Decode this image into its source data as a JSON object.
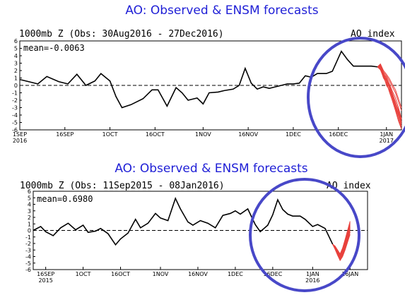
{
  "colors": {
    "title": "#1f1fd6",
    "observed": "#000000",
    "forecast": "#e8413c",
    "circle": "#4848c8"
  },
  "chart_data": [
    {
      "type": "line",
      "title": "AO: Observed & ENSM forecasts",
      "subtitle": "1000mb Z (Obs: 30Aug2016 - 27Dec2016)",
      "index_label": "AO index",
      "mean_label": "mean=-0.0063",
      "ylim": [
        -6,
        6
      ],
      "y_ticks": [
        "6",
        "5",
        "4",
        "3",
        "2",
        "1",
        "0",
        "-1",
        "-2",
        "-3",
        "-4",
        "-5",
        "-6"
      ],
      "x_ticks": [
        {
          "label": "1SEP",
          "sub": "2016",
          "x": 0
        },
        {
          "label": "16SEP",
          "x": 15
        },
        {
          "label": "1OCT",
          "x": 30
        },
        {
          "label": "16OCT",
          "x": 45
        },
        {
          "label": "1NOV",
          "x": 61
        },
        {
          "label": "16NOV",
          "x": 76
        },
        {
          "label": "1DEC",
          "x": 91
        },
        {
          "label": "16DEC",
          "x": 106
        },
        {
          "label": "1JAN",
          "sub": "2017",
          "x": 122
        }
      ],
      "x_range": [
        0,
        127
      ],
      "grid": false,
      "observed": {
        "x": [
          0,
          3,
          6,
          9,
          13,
          16,
          19,
          22,
          25,
          27,
          30,
          32,
          34,
          37,
          41,
          44,
          46,
          49,
          52,
          54,
          56,
          59,
          61,
          63,
          66,
          68,
          71,
          73,
          75,
          77,
          79,
          81,
          83,
          85,
          87,
          89,
          91,
          93,
          95,
          97,
          99,
          102,
          104,
          107,
          109,
          111,
          113,
          115,
          117,
          119
        ],
        "y": [
          0.8,
          0.5,
          0.2,
          1.2,
          0.5,
          0.2,
          1.5,
          0.0,
          0.6,
          1.6,
          0.6,
          -1.5,
          -3.0,
          -2.6,
          -1.8,
          -0.6,
          -0.6,
          -2.8,
          -0.3,
          -1.0,
          -2.0,
          -1.7,
          -2.5,
          -1.0,
          -0.9,
          -0.7,
          -0.5,
          0.0,
          2.3,
          0.3,
          -0.5,
          -0.2,
          -0.4,
          -0.2,
          0.0,
          0.2,
          0.2,
          0.3,
          1.3,
          1.1,
          1.6,
          1.6,
          1.9,
          4.6,
          3.5,
          2.6,
          2.6,
          2.6,
          2.6,
          2.5
        ]
      },
      "forecast": {
        "x_start": 119,
        "members": [
          [
            2.5,
            2.7,
            1.6,
            1.1,
            0.2,
            -0.8,
            -1.7,
            -3.0,
            -4.5
          ],
          [
            2.5,
            2.4,
            1.2,
            0.6,
            -0.4,
            -1.4,
            -2.6,
            -3.8,
            -5.2
          ],
          [
            2.5,
            2.2,
            1.5,
            0.0,
            -0.6,
            -1.8,
            -3.1,
            -4.5,
            -5.8
          ],
          [
            2.5,
            2.8,
            1.8,
            1.3,
            0.6,
            -0.2,
            -1.0,
            -2.2,
            -3.4
          ],
          [
            2.5,
            2.3,
            1.0,
            0.4,
            -0.9,
            -2.1,
            -3.4,
            -4.8,
            -5.9
          ],
          [
            2.5,
            2.6,
            1.7,
            0.8,
            0.0,
            -1.1,
            -2.2,
            -3.5,
            -4.9
          ],
          [
            2.5,
            2.5,
            1.4,
            0.9,
            -0.2,
            -1.5,
            -2.9,
            -4.1,
            -5.5
          ],
          [
            2.5,
            2.9,
            2.0,
            1.5,
            0.9,
            0.1,
            -0.6,
            -1.8,
            -3.0
          ],
          [
            2.5,
            2.1,
            1.1,
            0.2,
            -0.7,
            -1.6,
            -2.7,
            -3.9,
            -5.0
          ],
          [
            2.5,
            2.6,
            1.3,
            0.7,
            -0.3,
            -1.2,
            -2.3,
            -3.3,
            -4.6
          ]
        ]
      }
    },
    {
      "type": "line",
      "title": "AO: Observed & ENSM forecasts",
      "subtitle": "1000mb Z (Obs: 11Sep2015 - 08Jan2016)",
      "index_label": "AO index",
      "mean_label": "mean=0.6980",
      "ylim": [
        -6,
        6
      ],
      "y_ticks": [
        "6",
        "5",
        "4",
        "3",
        "2",
        "1",
        "0",
        "-1",
        "-2",
        "-3",
        "-4",
        "-5",
        "-6"
      ],
      "x_ticks": [
        {
          "label": "16SEP",
          "sub": "2015",
          "x": 5
        },
        {
          "label": "1OCT",
          "x": 20
        },
        {
          "label": "16OCT",
          "x": 35
        },
        {
          "label": "1NOV",
          "x": 51
        },
        {
          "label": "16NOV",
          "x": 66
        },
        {
          "label": "1DEC",
          "x": 81
        },
        {
          "label": "16DEC",
          "x": 96
        },
        {
          "label": "1JAN",
          "sub": "2016",
          "x": 112
        },
        {
          "label": "16JAN",
          "x": 127
        }
      ],
      "x_range": [
        0,
        134
      ],
      "grid": false,
      "observed": {
        "x": [
          0,
          3,
          5,
          8,
          11,
          14,
          17,
          20,
          22,
          25,
          27,
          30,
          33,
          35,
          38,
          41,
          43,
          46,
          49,
          51,
          54,
          57,
          59,
          62,
          64,
          67,
          70,
          73,
          76,
          79,
          81,
          83,
          86,
          89,
          91,
          94,
          96,
          98,
          100,
          102,
          104,
          107,
          109,
          112,
          114,
          117,
          120
        ],
        "y": [
          0.0,
          0.6,
          -0.2,
          -0.8,
          0.4,
          1.1,
          0.1,
          0.8,
          -0.3,
          -0.1,
          0.3,
          -0.5,
          -2.2,
          -1.3,
          -0.4,
          1.7,
          0.4,
          1.1,
          2.6,
          1.9,
          1.5,
          4.9,
          3.3,
          1.3,
          0.8,
          1.5,
          1.1,
          0.4,
          2.3,
          2.6,
          3.0,
          2.5,
          3.3,
          0.9,
          -0.2,
          0.8,
          2.4,
          4.7,
          3.2,
          2.5,
          2.2,
          2.2,
          1.7,
          0.6,
          0.9,
          0.3,
          -2.1
        ]
      },
      "forecast": {
        "x_start": 120,
        "members": [
          [
            -2.1,
            -2.6,
            -3.4,
            -4.0,
            -3.1,
            -2.0,
            -0.8,
            0.6
          ],
          [
            -2.1,
            -2.8,
            -3.6,
            -4.4,
            -3.6,
            -2.4,
            -1.2,
            0.2
          ],
          [
            -2.1,
            -2.5,
            -3.2,
            -3.8,
            -2.9,
            -1.7,
            -0.4,
            1.0
          ],
          [
            -2.1,
            -2.9,
            -3.8,
            -4.6,
            -4.0,
            -3.0,
            -1.8,
            -0.6
          ],
          [
            -2.1,
            -2.7,
            -3.5,
            -4.2,
            -3.3,
            -2.2,
            -1.0,
            0.4
          ],
          [
            -2.1,
            -2.4,
            -3.0,
            -3.6,
            -2.7,
            -1.4,
            0.0,
            1.4
          ],
          [
            -2.1,
            -2.8,
            -3.7,
            -4.3,
            -3.5,
            -2.6,
            -1.4,
            -0.1
          ],
          [
            -2.1,
            -2.6,
            -3.3,
            -3.9,
            -3.0,
            -1.9,
            -0.6,
            0.8
          ],
          [
            -2.1,
            -2.7,
            -3.6,
            -4.5,
            -3.8,
            -2.8,
            -1.6,
            -0.3
          ],
          [
            -2.1,
            -2.5,
            -3.1,
            -3.7,
            -2.8,
            -1.6,
            -0.2,
            1.2
          ]
        ]
      }
    }
  ]
}
